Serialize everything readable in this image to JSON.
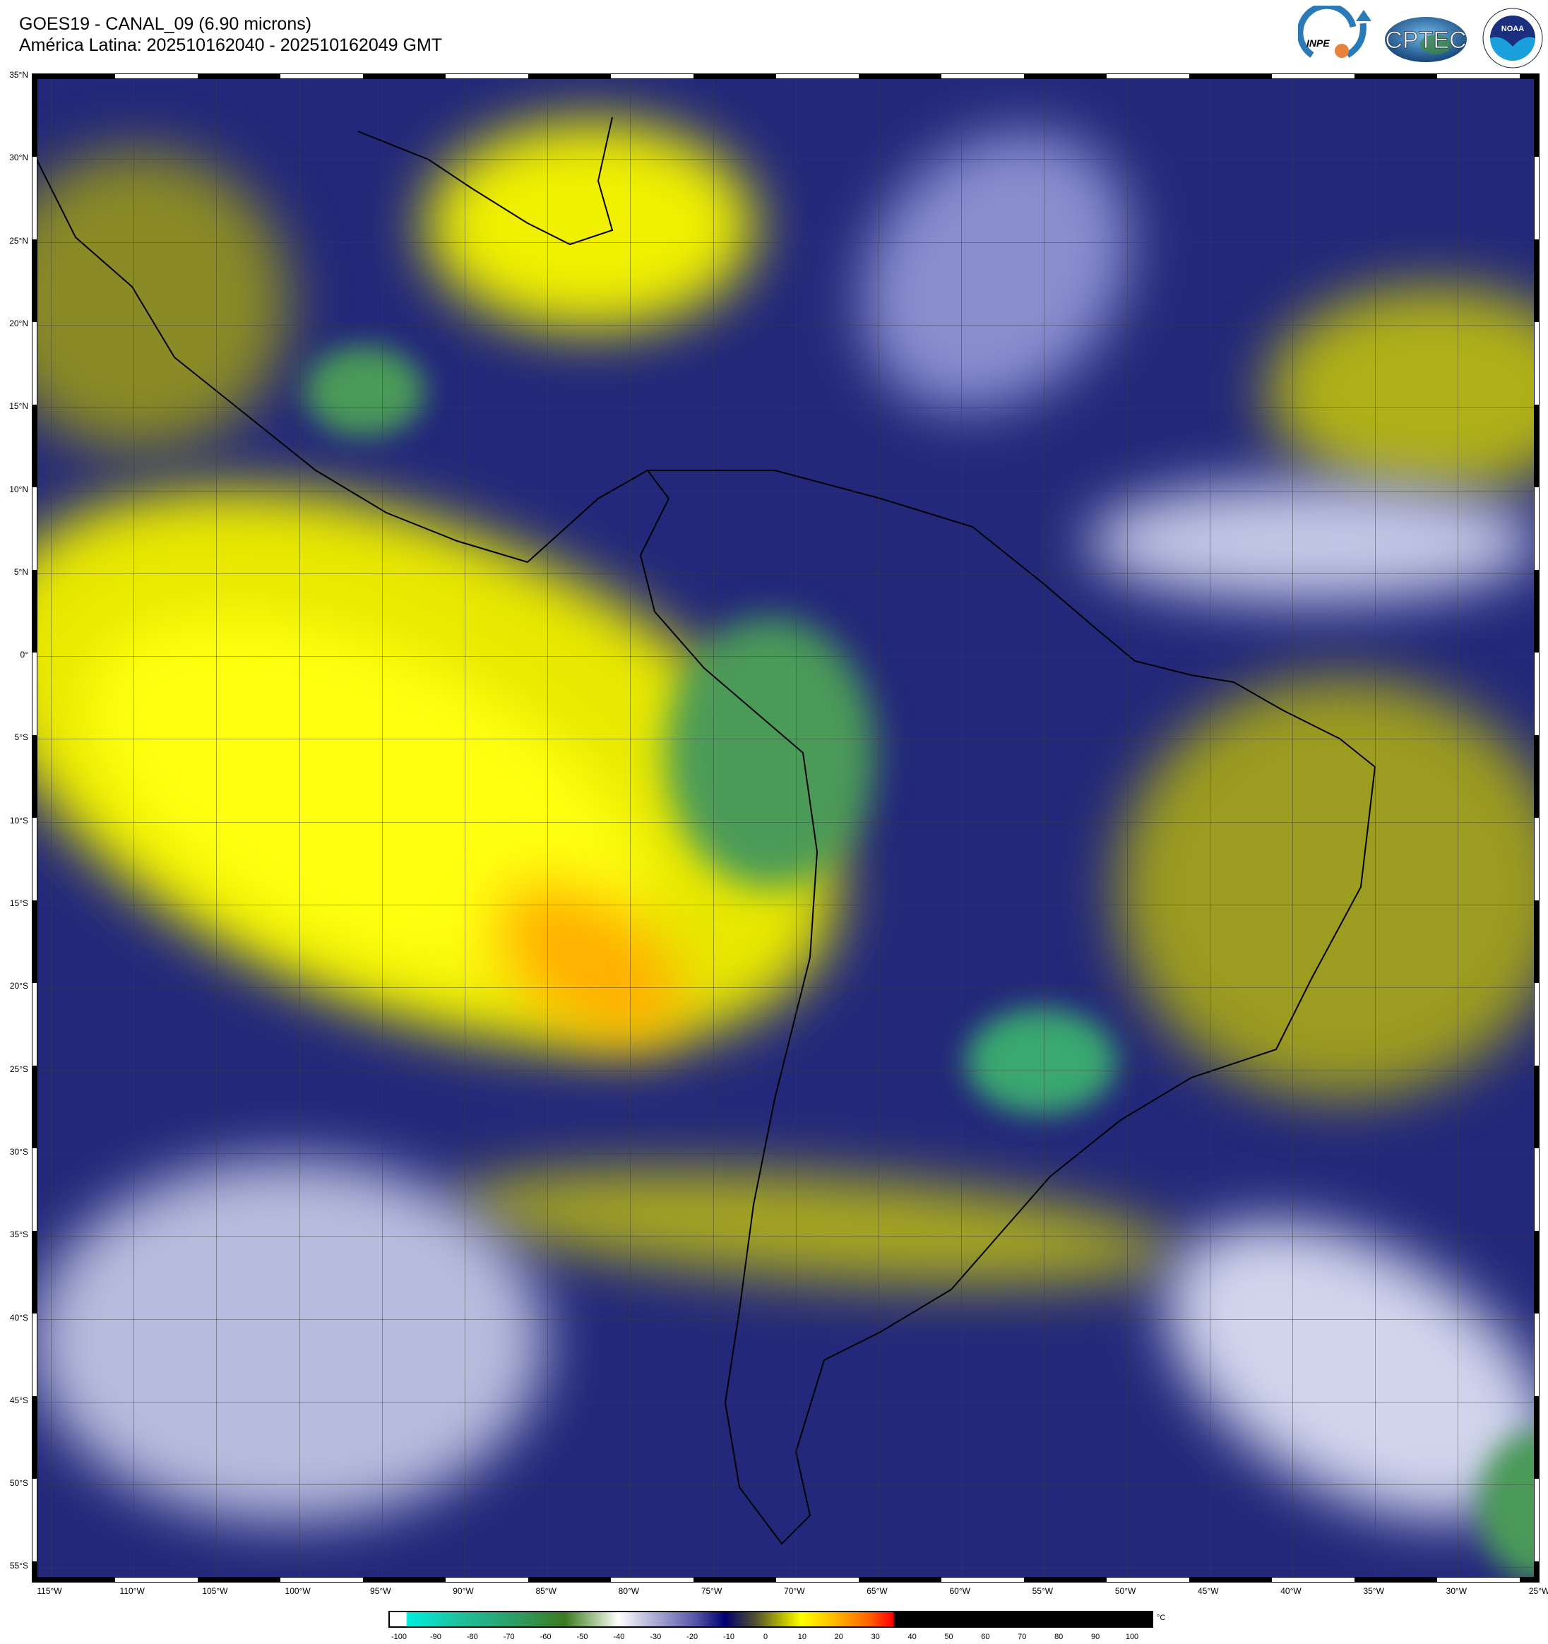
{
  "header": {
    "title": "GOES19 - CANAL_09 (6.90 microns)",
    "subtitle": "América Latina: 202510162040 - 202510162049 GMT"
  },
  "logos": [
    {
      "name": "INPE",
      "text": "INPE"
    },
    {
      "name": "CPTEC",
      "text": "CPTEC"
    },
    {
      "name": "NOAA",
      "text": "NOAA"
    }
  ],
  "map": {
    "lat_labels": [
      "35°N",
      "30°N",
      "25°N",
      "20°N",
      "15°N",
      "10°N",
      "5°N",
      "0°",
      "5°S",
      "10°S",
      "15°S",
      "20°S",
      "25°S",
      "30°S",
      "35°S",
      "40°S",
      "45°S",
      "50°S",
      "55°S"
    ],
    "lon_labels": [
      "115°W",
      "110°W",
      "105°W",
      "100°W",
      "95°W",
      "90°W",
      "85°W",
      "80°W",
      "75°W",
      "70°W",
      "65°W",
      "60°W",
      "55°W",
      "50°W",
      "45°W",
      "40°W",
      "35°W",
      "30°W",
      "25°W"
    ]
  },
  "colorbar": {
    "ticks": [
      "-100",
      "-90",
      "-80",
      "-70",
      "-60",
      "-50",
      "-40",
      "-30",
      "-20",
      "-10",
      "0",
      "10",
      "20",
      "30",
      "40",
      "50",
      "60",
      "70",
      "80",
      "90",
      "100"
    ],
    "unit": "°C",
    "colors": {
      "cold": "#00eedd",
      "green": "#3e7a20",
      "white": "#ffffff",
      "navy": "#000070",
      "yellow": "#ffff00",
      "red": "#ff0000",
      "black": "#000000"
    }
  }
}
